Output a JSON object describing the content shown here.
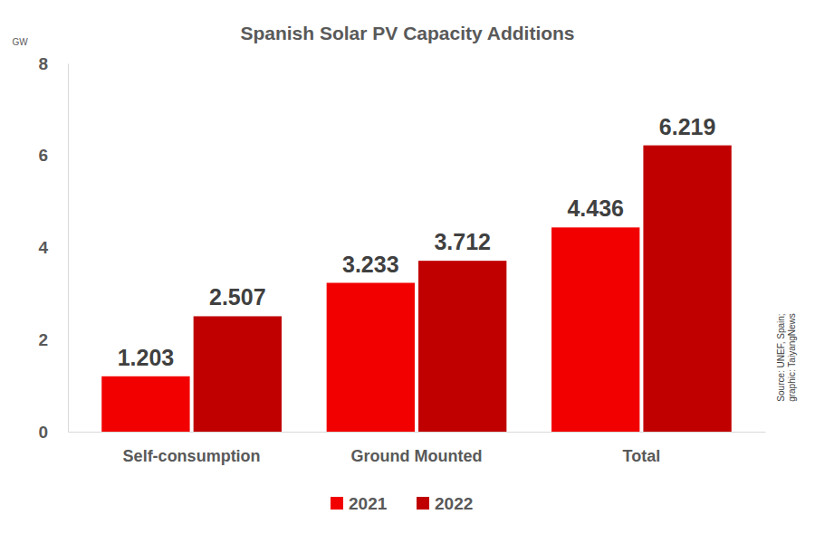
{
  "chart_data": {
    "type": "bar",
    "title": "Spanish Solar PV Capacity Additions",
    "y_label": "GW",
    "annotations": [
      "Source: UNEF, Spain;",
      "graphic: TaiyangNews"
    ],
    "categories": [
      "Self-consumption",
      "Ground Mounted",
      "Total"
    ],
    "series": [
      {
        "name": "2021",
        "color": "#f20000",
        "values": [
          1.203,
          3.233,
          4.436
        ]
      },
      {
        "name": "2022",
        "color": "#c00000",
        "values": [
          2.507,
          3.712,
          6.219
        ]
      }
    ],
    "ylim": [
      0,
      8
    ],
    "yticks": [
      0,
      2,
      4,
      6,
      8
    ],
    "grid": false,
    "legend": "bottom",
    "data_labels": true
  }
}
